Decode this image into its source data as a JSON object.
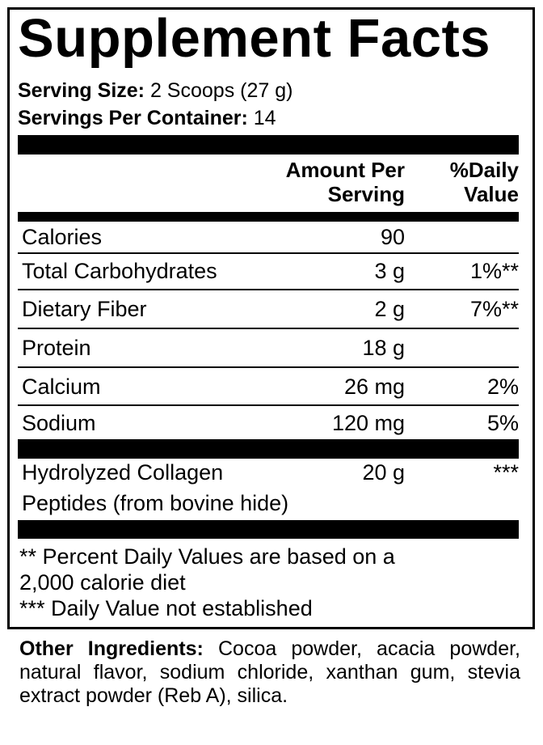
{
  "title": "Supplement Facts",
  "serving_size": {
    "label": "Serving Size:",
    "value": "2 Scoops (27 g)"
  },
  "servings_per_container": {
    "label": "Servings Per Container:",
    "value": "14"
  },
  "header": {
    "amount_line1": "Amount Per",
    "amount_line2": "Serving",
    "dv_line1": "%Daily",
    "dv_line2": "Value"
  },
  "rows": [
    {
      "name": "Calories",
      "amount": "90",
      "dv": ""
    },
    {
      "name": "Total Carbohydrates",
      "amount": "3 g",
      "dv": "1%**"
    },
    {
      "name": "Dietary Fiber",
      "amount": "2 g",
      "dv": "7%**"
    },
    {
      "name": "Protein",
      "amount": "18 g",
      "dv": ""
    },
    {
      "name": "Calcium",
      "amount": "26 mg",
      "dv": "2%"
    },
    {
      "name": "Sodium",
      "amount": "120 mg",
      "dv": "5%"
    }
  ],
  "collagen": {
    "name_line1": "Hydrolyzed Collagen",
    "name_line2": "Peptides (from bovine hide)",
    "amount": "20 g",
    "dv": "***"
  },
  "footnotes": {
    "line1": "** Percent Daily Values are based on a",
    "line2": "2,000 calorie diet",
    "line3": "*** Daily Value not established"
  },
  "other_ingredients": {
    "label": "Other Ingredients:",
    "text": "Cocoa powder, acacia powder, natural flavor, sodium chloride, xanthan gum, stevia extract powder (Reb A), silica."
  }
}
